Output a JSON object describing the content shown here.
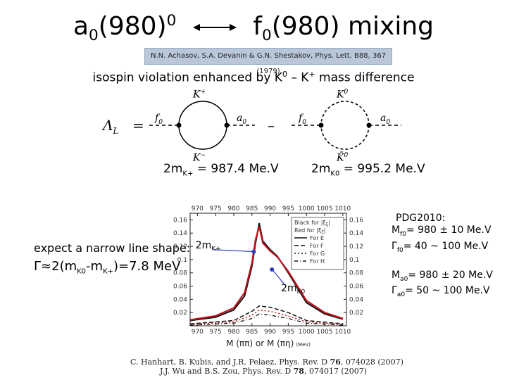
{
  "title": {
    "left": "a",
    "left_sub": "0",
    "left_rest": "(980)",
    "left_sup": "0",
    "right": "f",
    "right_sub": "0",
    "right_rest": "(980) mixing"
  },
  "reference": "N.N. Achasov, S.A. Devanin & G.N. Shestakov, Phys. Lett. B88, 367 (1979)",
  "subtitle": {
    "text_a": "isospin violation enhanced by K",
    "sup_a": "0",
    "text_b": " – K",
    "sup_b": "+",
    "text_c": " mass difference"
  },
  "diagram": {
    "lambda": "Λ",
    "lambda_sub": "L",
    "equals": "=",
    "minus": "–",
    "kplus": "K",
    "kplus_sup": "+",
    "kminus": "K",
    "kminus_sup": "−",
    "k0": "K",
    "k0_sup": "0",
    "k0bar": "K̄",
    "k0bar_sup": "0",
    "f0": "f",
    "f0_sub": "0",
    "a0": "a",
    "a0_sub": "0"
  },
  "masses": {
    "charged": {
      "prefix": "2m",
      "sub": "K+",
      "text": " = 987.4 Me.V"
    },
    "neutral": {
      "prefix": "2m",
      "sub": "K0",
      "text": " = 995.2 Me.V"
    }
  },
  "narrow": {
    "line1": "expect a narrow line shape:",
    "gamma": "Γ≈2(m",
    "sub1": "K0",
    "mid": "-m",
    "sub2": "K+",
    "tail": ")=7.8 MeV"
  },
  "pdg": {
    "heading": "PDG2010:",
    "mf0": "M",
    "mf0_sub": "f0",
    "mf0_val": "= 980 ± 10 Me.V",
    "gf0": "Γ",
    "gf0_sub": "f0",
    "gf0_val": "= 40 ~ 100 Me.V",
    "ma0": "M",
    "ma0_sub": "a0",
    "ma0_val": "= 980 ± 20 Me.V",
    "ga0": "Γ",
    "ga0_sub": "a0",
    "ga0_val": "= 50 ~ 100 Me.V"
  },
  "chart_data": {
    "type": "line",
    "x_top_ticks": [
      "970",
      "975",
      "980",
      "985",
      "990",
      "995",
      "1000",
      "1005",
      "1010"
    ],
    "x_bottom_ticks": [
      "970",
      "975",
      "980",
      "985",
      "990",
      "995",
      "1000",
      "1005",
      "1010"
    ],
    "y_ticks": [
      "0.16",
      "0.14",
      "0.12",
      "0.1",
      "0.08",
      "0.06",
      "0.04",
      "0.02"
    ],
    "xlim": [
      968,
      1011
    ],
    "ylim": [
      0,
      0.17
    ],
    "xlabel": {
      "a": "M (ππ)",
      "b": " or M (πη)",
      "c": "(MeV)"
    },
    "legend": [
      "Black for |ξ",
      "Red for |ξ",
      "For E",
      "For F",
      "For G",
      "For H"
    ],
    "legend_sub": [
      "ξ",
      "ζ"
    ],
    "annotation_plus": {
      "text": "2m",
      "sub": "K+"
    },
    "annotation_zero": {
      "text": "2m",
      "sub": "K0"
    },
    "series": [
      {
        "name": "For E (black)",
        "x": [
          968,
          975,
          980,
          983,
          985,
          986,
          987,
          988,
          990,
          992,
          995,
          1000,
          1005,
          1010
        ],
        "y": [
          0.008,
          0.013,
          0.024,
          0.045,
          0.09,
          0.125,
          0.155,
          0.128,
          0.115,
          0.105,
          0.08,
          0.035,
          0.018,
          0.01
        ]
      },
      {
        "name": "For E (red)",
        "x": [
          968,
          975,
          980,
          983,
          985,
          986,
          987,
          988,
          990,
          992,
          995,
          1000,
          1005,
          1010
        ],
        "y": [
          0.009,
          0.015,
          0.027,
          0.05,
          0.095,
          0.13,
          0.15,
          0.125,
          0.113,
          0.104,
          0.082,
          0.038,
          0.02,
          0.011
        ]
      },
      {
        "name": "For F",
        "x": [
          968,
          980,
          985,
          987,
          990,
          995,
          1000,
          1010
        ],
        "y": [
          0.003,
          0.008,
          0.022,
          0.03,
          0.028,
          0.02,
          0.008,
          0.003
        ]
      },
      {
        "name": "For G",
        "x": [
          968,
          980,
          985,
          987,
          990,
          995,
          1000,
          1010
        ],
        "y": [
          0.002,
          0.006,
          0.016,
          0.024,
          0.022,
          0.015,
          0.006,
          0.002
        ]
      },
      {
        "name": "For H",
        "x": [
          968,
          980,
          985,
          987,
          990,
          995,
          1000,
          1010
        ],
        "y": [
          0.001,
          0.004,
          0.011,
          0.018,
          0.016,
          0.011,
          0.004,
          0.001
        ]
      }
    ]
  },
  "citations": {
    "line1": {
      "a": "C. Hanhart, B. Kubis, and J.R. Pelaez, Phys. Rev. D ",
      "b": "76",
      "c": ", 074028 (2007)"
    },
    "line2": {
      "a": "J.J. Wu and B.S. Zou, Phys. Rev. D ",
      "b": "78",
      "c": ", 074017 (2007)"
    }
  },
  "colors": {
    "ref_bg": "#b9c7d9",
    "curve_red": "#c0141c",
    "curve_black": "#111111"
  }
}
